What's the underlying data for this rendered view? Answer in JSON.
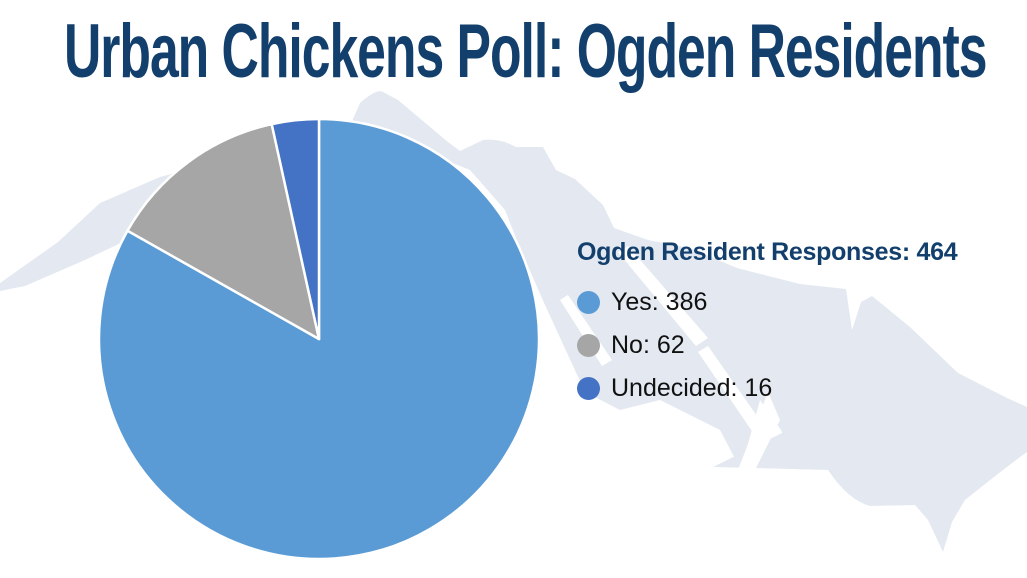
{
  "title": "Urban Chickens Poll: Ogden Residents",
  "colors": {
    "title_navy": "#133F6D",
    "watermark_light": "#E4E9F1",
    "yes_blue": "#5B9BD5",
    "no_gray": "#A6A6A6",
    "undecided_blue": "#4472C4",
    "slice_separator": "#FFFFFF",
    "background": "#FFFFFF"
  },
  "legend": {
    "heading": "Ogden Resident Responses: 464",
    "items": [
      {
        "label": "Yes: 386",
        "color": "#5B9BD5"
      },
      {
        "label": "No: 62",
        "color": "#A6A6A6"
      },
      {
        "label": "Undecided: 16",
        "color": "#4472C4"
      }
    ]
  },
  "chart_data": {
    "type": "pie",
    "title": "Urban Chickens Poll: Ogden Residents",
    "legend_title": "Ogden Resident Responses: 464",
    "total": 464,
    "categories": [
      "Yes",
      "No",
      "Undecided"
    ],
    "values": [
      386,
      62,
      16
    ],
    "percentages": [
      83.2,
      13.4,
      3.4
    ],
    "colors": [
      "#5B9BD5",
      "#A6A6A6",
      "#4472C4"
    ],
    "start_angle_deg": 0,
    "direction": "clockwise",
    "legend_position": "right",
    "slice_border_color": "#FFFFFF"
  }
}
